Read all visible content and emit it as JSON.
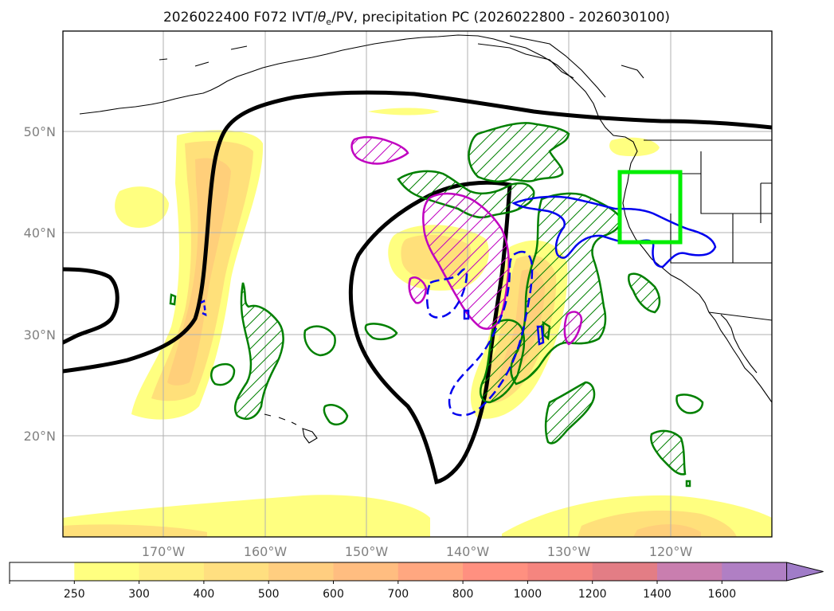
{
  "title_prefix": "2026022400 F072 IVT/",
  "title_theta": "θ",
  "title_sub": "e",
  "title_suffix": "/PV, precipitation PC (2026022800 - 2026030100)",
  "map": {
    "lon_range": [
      -180,
      -110
    ],
    "lat_range": [
      10,
      60
    ],
    "lat_labels": [
      "50°N",
      "40°N",
      "30°N",
      "20°N"
    ],
    "lon_labels": [
      "170°W",
      "160°W",
      "150°W",
      "140°W",
      "130°W",
      "120°W"
    ],
    "highlight_box": {
      "lon": [
        -125,
        -119
      ],
      "lat": [
        39,
        46
      ],
      "color": "#00ee00"
    }
  },
  "colorbar": {
    "tick_labels": [
      "250",
      "300",
      "400",
      "500",
      "600",
      "700",
      "800",
      "1000",
      "1200",
      "1400",
      "1600"
    ],
    "colors": [
      "#ffffff",
      "#ffff80",
      "#ffef80",
      "#ffdf80",
      "#ffce80",
      "#ffbd80",
      "#ffa780",
      "#ff9080",
      "#f5857f",
      "#e37d85",
      "#c97eaf",
      "#b07fc4",
      "#a07cc8"
    ],
    "extend": "max"
  },
  "colors": {
    "ivt_light": "#ffff80",
    "ivt_mid": "#ffe07a",
    "ivt_dark": "#ffcf7a",
    "theta": "#000000",
    "pv_green": "#008000",
    "pv_magenta": "#c000c0",
    "pv_blue": "#0000ee"
  }
}
